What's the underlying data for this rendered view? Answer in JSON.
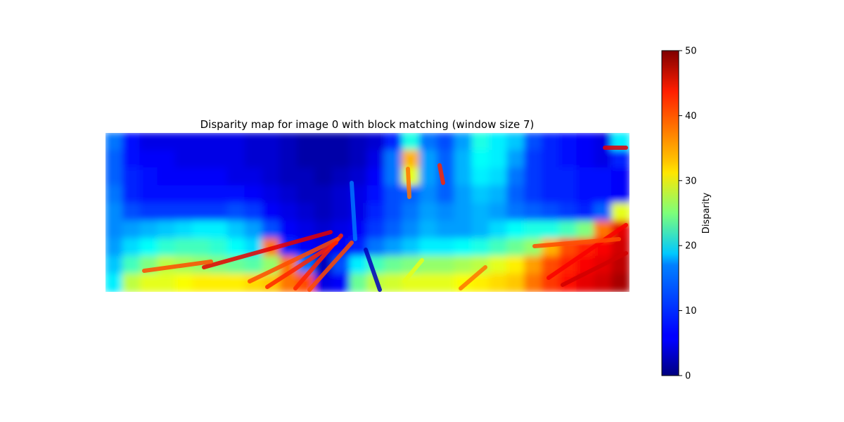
{
  "chart_data": {
    "type": "heatmap",
    "title": "Disparity map for image 0 with block matching (window size 7)",
    "axes_visible": false,
    "colormap": "jet",
    "colorbar": {
      "label": "Disparity",
      "range": [
        0,
        50
      ],
      "ticks": [
        "0",
        "10",
        "20",
        "30",
        "40",
        "50"
      ],
      "placement": "right"
    },
    "value_range": [
      0,
      50
    ],
    "grid_cols": 30,
    "grid_rows": 9,
    "grid_values": [
      [
        12,
        7,
        5,
        5,
        5,
        5,
        5,
        5,
        4,
        4,
        3,
        2,
        2,
        2,
        3,
        4,
        8,
        20,
        12,
        10,
        14,
        20,
        18,
        16,
        10,
        8,
        7,
        6,
        5,
        18
      ],
      [
        11,
        7,
        6,
        6,
        5,
        5,
        5,
        5,
        4,
        4,
        3,
        2,
        2,
        2,
        3,
        5,
        12,
        35,
        14,
        11,
        15,
        19,
        18,
        14,
        9,
        8,
        7,
        6,
        5,
        8
      ],
      [
        11,
        8,
        7,
        6,
        6,
        6,
        6,
        5,
        5,
        4,
        3,
        3,
        2,
        3,
        4,
        6,
        12,
        30,
        14,
        11,
        15,
        18,
        17,
        12,
        9,
        8,
        8,
        7,
        7,
        6
      ],
      [
        12,
        8,
        7,
        7,
        7,
        7,
        7,
        7,
        6,
        5,
        4,
        3,
        3,
        4,
        5,
        7,
        10,
        11,
        13,
        11,
        14,
        16,
        15,
        11,
        9,
        8,
        8,
        7,
        7,
        6
      ],
      [
        13,
        10,
        9,
        9,
        9,
        9,
        9,
        10,
        9,
        6,
        5,
        4,
        3,
        4,
        5,
        8,
        10,
        12,
        14,
        13,
        14,
        15,
        14,
        12,
        11,
        10,
        9,
        8,
        11,
        30
      ],
      [
        13,
        14,
        15,
        16,
        17,
        18,
        18,
        16,
        14,
        10,
        6,
        5,
        4,
        5,
        6,
        9,
        11,
        13,
        15,
        14,
        14,
        15,
        17,
        19,
        20,
        20,
        22,
        25,
        38,
        45
      ],
      [
        14,
        17,
        19,
        21,
        22,
        22,
        21,
        19,
        17,
        38,
        8,
        6,
        5,
        6,
        8,
        12,
        14,
        16,
        18,
        18,
        19,
        20,
        22,
        24,
        26,
        35,
        40,
        42,
        44,
        46
      ],
      [
        16,
        22,
        25,
        28,
        27,
        26,
        25,
        24,
        23,
        26,
        38,
        12,
        3,
        10,
        18,
        22,
        24,
        25,
        26,
        26,
        27,
        28,
        30,
        32,
        36,
        40,
        42,
        44,
        45,
        47
      ],
      [
        18,
        28,
        30,
        30,
        31,
        32,
        32,
        32,
        33,
        34,
        38,
        40,
        5,
        6,
        24,
        28,
        29,
        30,
        30,
        30,
        31,
        32,
        33,
        34,
        38,
        41,
        43,
        45,
        46,
        48
      ]
    ],
    "streaks": [
      {
        "x1": 290,
        "y1": 380,
        "x2": 470,
        "y2": 330,
        "value": 45
      },
      {
        "x1": 420,
        "y1": 410,
        "x2": 485,
        "y2": 335,
        "value": 42
      },
      {
        "x1": 440,
        "y1": 412,
        "x2": 500,
        "y2": 345,
        "value": 40
      },
      {
        "x1": 205,
        "y1": 385,
        "x2": 300,
        "y2": 372,
        "value": 40
      },
      {
        "x1": 355,
        "y1": 400,
        "x2": 480,
        "y2": 340,
        "value": 40
      },
      {
        "x1": 380,
        "y1": 408,
        "x2": 478,
        "y2": 345,
        "value": 42
      },
      {
        "x1": 655,
        "y1": 410,
        "x2": 690,
        "y2": 380,
        "value": 38
      },
      {
        "x1": 780,
        "y1": 395,
        "x2": 890,
        "y2": 320,
        "value": 44
      },
      {
        "x1": 800,
        "y1": 405,
        "x2": 890,
        "y2": 360,
        "value": 46
      },
      {
        "x1": 760,
        "y1": 350,
        "x2": 880,
        "y2": 340,
        "value": 40
      },
      {
        "x1": 500,
        "y1": 260,
        "x2": 505,
        "y2": 340,
        "value": 12
      },
      {
        "x1": 580,
        "y1": 240,
        "x2": 582,
        "y2": 280,
        "value": 38
      },
      {
        "x1": 625,
        "y1": 235,
        "x2": 630,
        "y2": 260,
        "value": 42
      },
      {
        "x1": 860,
        "y1": 210,
        "x2": 890,
        "y2": 210,
        "value": 45
      },
      {
        "x1": 575,
        "y1": 400,
        "x2": 600,
        "y2": 370,
        "value": 30
      },
      {
        "x1": 520,
        "y1": 355,
        "x2": 540,
        "y2": 412,
        "value": 3
      }
    ]
  }
}
